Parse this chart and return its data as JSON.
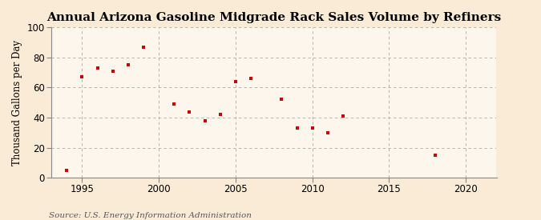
{
  "title": "Annual Arizona Gasoline Midgrade Rack Sales Volume by Refiners",
  "ylabel": "Thousand Gallons per Day",
  "source": "Source: U.S. Energy Information Administration",
  "bg_color": "#faebd7",
  "plot_bg_color": "#fdf6ec",
  "marker_color": "#cc0000",
  "years": [
    1994,
    1995,
    1996,
    1997,
    1998,
    1999,
    2001,
    2002,
    2003,
    2004,
    2005,
    2006,
    2008,
    2009,
    2010,
    2011,
    2012,
    2018
  ],
  "values": [
    5,
    67,
    73,
    71,
    75,
    87,
    49,
    44,
    38,
    42,
    64,
    66,
    52,
    33,
    33,
    30,
    41,
    15
  ],
  "xlim": [
    1993,
    2022
  ],
  "ylim": [
    0,
    100
  ],
  "xticks": [
    1995,
    2000,
    2005,
    2010,
    2015,
    2020
  ],
  "yticks": [
    0,
    20,
    40,
    60,
    80,
    100
  ],
  "title_fontsize": 11,
  "label_fontsize": 8.5,
  "source_fontsize": 7.5
}
